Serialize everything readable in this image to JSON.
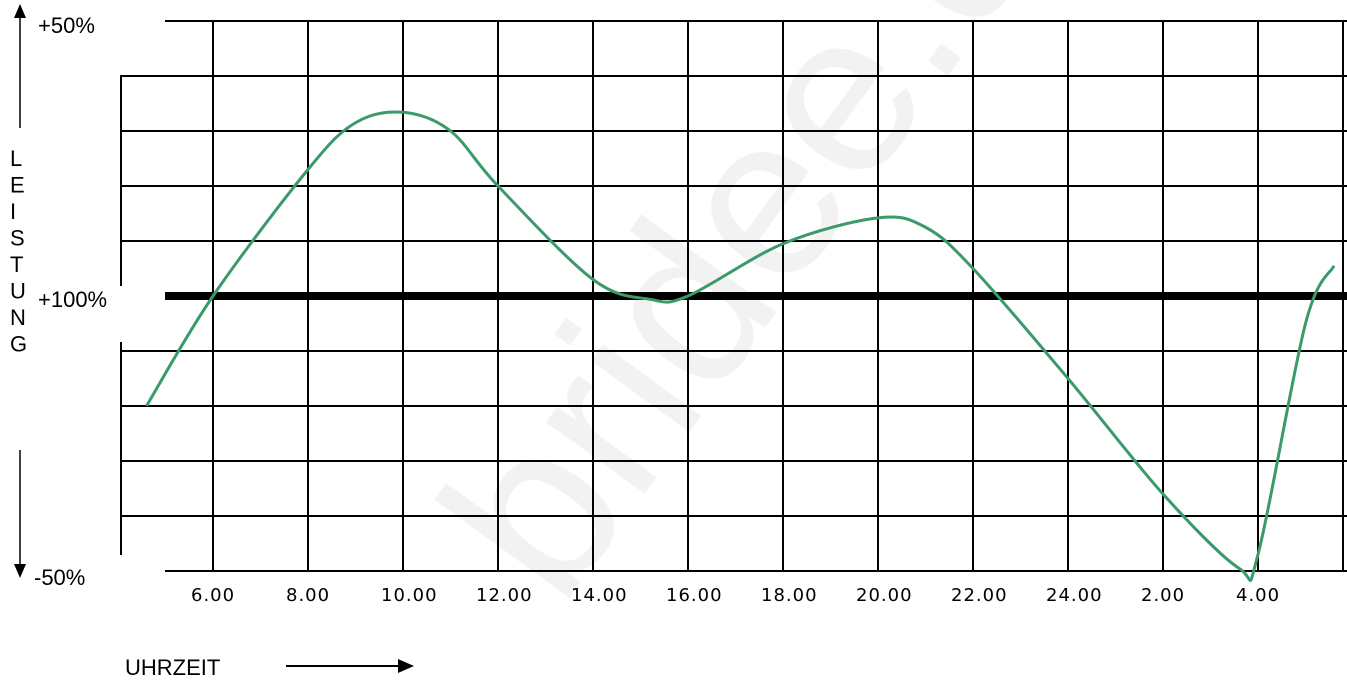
{
  "chart_data": {
    "type": "line",
    "title": "",
    "xlabel": "UHRZEIT",
    "ylabel": "LEISTUNG",
    "x_tick_labels": [
      "6.00",
      "8.00",
      "10.00",
      "12.00",
      "14.00",
      "16.00",
      "18.00",
      "20.00",
      "22.00",
      "24.00",
      "2.00",
      "4.00"
    ],
    "y_labels": {
      "top": "+50%",
      "middle": "+100%",
      "bottom": "-50%"
    },
    "ylim": [
      -50,
      50
    ],
    "grid": true,
    "reference_line_value": 0,
    "series": [
      {
        "color": "#3a9a6a",
        "points": [
          [
            4.6,
            -20
          ],
          [
            6.0,
            0
          ],
          [
            8.0,
            23
          ],
          [
            9.0,
            31.5
          ],
          [
            10.0,
            33.4
          ],
          [
            11.0,
            30
          ],
          [
            12.0,
            20
          ],
          [
            14.0,
            3
          ],
          [
            15.2,
            -0.6
          ],
          [
            16.0,
            0
          ],
          [
            18.0,
            9.5
          ],
          [
            20.0,
            14.2
          ],
          [
            21.0,
            12.5
          ],
          [
            22.0,
            5
          ],
          [
            24.0,
            -15
          ],
          [
            26.0,
            -36
          ],
          [
            27.6,
            -49.5
          ],
          [
            28.0,
            -47
          ],
          [
            29.0,
            -5
          ],
          [
            29.6,
            5.5
          ]
        ]
      }
    ]
  },
  "watermark": "bridee.de",
  "colors": {
    "line": "#3a9a6a",
    "grid": "#000000",
    "watermark": "#f2f2f2"
  }
}
